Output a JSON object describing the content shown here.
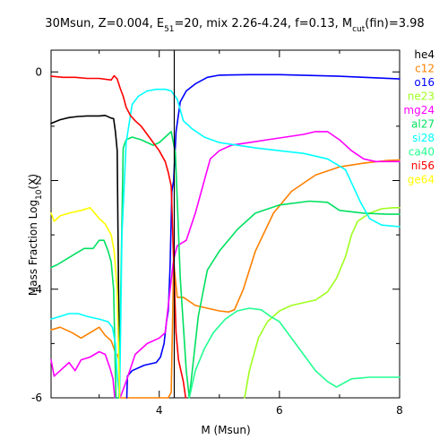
{
  "chart_data": {
    "type": "line",
    "title": {
      "base": "30Msun, Z=0.004, E",
      "base_sub": "51",
      "mid": "=20, mix 2.26-4.24, f=0.13, M",
      "mid_sub": "cut",
      "end": "(fin)=3.98"
    },
    "xlabel": "M (Msun)",
    "ylabel": {
      "base": "Mass Fraction Log",
      "sub": "10",
      "end": "(X)"
    },
    "xlim": [
      2.2,
      8
    ],
    "ylim": [
      -6,
      0.4
    ],
    "xticks": [
      4,
      6,
      8
    ],
    "xtick_labels": [
      "4",
      "6",
      "8"
    ],
    "yticks": [
      -6,
      -4,
      -2,
      0
    ],
    "ytick_labels": [
      "-6",
      "-4",
      "-2",
      "0"
    ],
    "vertical_line_x": 4.25,
    "grid": false,
    "legend_position": "right",
    "series": [
      {
        "name": "he4",
        "color": "#000000",
        "x": [
          2.2,
          2.35,
          2.5,
          2.65,
          2.8,
          3.0,
          3.1,
          3.2,
          3.24,
          3.27,
          3.3,
          3.34
        ],
        "y": [
          -0.95,
          -0.88,
          -0.84,
          -0.82,
          -0.81,
          -0.81,
          -0.8,
          -0.85,
          -0.86,
          -1.1,
          -1.45,
          -6
        ]
      },
      {
        "name": "c12",
        "color": "#ff8000",
        "x": [
          2.2,
          2.35,
          2.55,
          2.7,
          2.85,
          3.0,
          3.1,
          3.2,
          3.25,
          3.28,
          3.3,
          3.33,
          3.34,
          3.36,
          3.6,
          3.8,
          4.0,
          4.15,
          4.2,
          4.24,
          4.3,
          4.4,
          4.6,
          4.8,
          5.0,
          5.15,
          5.25,
          5.4,
          5.6,
          5.9,
          6.2,
          6.6,
          7.0,
          7.4,
          7.8,
          8.0
        ],
        "y": [
          -4.75,
          -4.7,
          -4.8,
          -4.9,
          -4.8,
          -4.7,
          -4.85,
          -4.95,
          -5.1,
          -5.2,
          -5.2,
          -5.3,
          -6,
          -6,
          -6,
          -6,
          -6,
          -6,
          -5.9,
          -3.5,
          -4.15,
          -4.15,
          -4.3,
          -4.35,
          -4.4,
          -4.42,
          -4.38,
          -4.0,
          -3.3,
          -2.6,
          -2.2,
          -1.9,
          -1.75,
          -1.68,
          -1.63,
          -1.62
        ]
      },
      {
        "name": "o16",
        "color": "#0000ff",
        "x": [
          3.46,
          3.47,
          3.55,
          3.75,
          3.95,
          4.02,
          4.08,
          4.12,
          4.15,
          4.18,
          4.21,
          4.24,
          4.28,
          4.35,
          4.45,
          4.6,
          4.8,
          5.0,
          5.5,
          6.0,
          7.0,
          8.0
        ],
        "y": [
          -6,
          -5.6,
          -5.5,
          -5.4,
          -5.35,
          -5.25,
          -5.0,
          -4.6,
          -4.4,
          -3.6,
          -2.2,
          -2.0,
          -1.1,
          -0.55,
          -0.35,
          -0.22,
          -0.1,
          -0.06,
          -0.05,
          -0.05,
          -0.08,
          -0.13
        ]
      },
      {
        "name": "ne23",
        "color": "#a0ff20",
        "x": [
          5.42,
          5.5,
          5.65,
          5.8,
          6.0,
          6.2,
          6.4,
          6.6,
          6.8,
          6.95,
          7.1,
          7.2,
          7.3,
          7.5,
          7.7,
          7.9,
          8.0
        ],
        "y": [
          -6,
          -5.5,
          -4.9,
          -4.6,
          -4.4,
          -4.3,
          -4.25,
          -4.2,
          -4.05,
          -3.8,
          -3.4,
          -3.0,
          -2.75,
          -2.6,
          -2.52,
          -2.5,
          -2.5
        ]
      },
      {
        "name": "mg24",
        "color": "#ff00ff",
        "x": [
          2.2,
          2.25,
          2.35,
          2.5,
          2.6,
          2.7,
          2.85,
          3.0,
          3.1,
          3.18,
          3.23,
          3.26,
          3.3,
          3.35,
          3.45,
          3.6,
          3.8,
          4.0,
          4.1,
          4.15,
          4.24,
          4.3,
          4.45,
          4.6,
          4.75,
          4.85,
          5.0,
          5.2,
          5.5,
          5.8,
          6.1,
          6.4,
          6.6,
          6.8,
          7.0,
          7.2,
          7.4,
          7.6,
          8.0
        ],
        "y": [
          -5.3,
          -5.6,
          -5.5,
          -5.35,
          -5.5,
          -5.3,
          -5.25,
          -5.15,
          -5.2,
          -5.45,
          -5.65,
          -6,
          -6,
          -6,
          -5.7,
          -5.2,
          -5.0,
          -4.9,
          -4.8,
          -4.3,
          -3.45,
          -3.2,
          -3.1,
          -2.6,
          -2.0,
          -1.6,
          -1.45,
          -1.35,
          -1.3,
          -1.25,
          -1.2,
          -1.15,
          -1.1,
          -1.1,
          -1.25,
          -1.45,
          -1.6,
          -1.65,
          -1.65
        ]
      },
      {
        "name": "al27",
        "color": "#00e060",
        "x": [
          2.2,
          2.3,
          2.45,
          2.6,
          2.75,
          2.9,
          3.0,
          3.08,
          3.15,
          3.2,
          3.24,
          3.28,
          3.33,
          3.36,
          3.4,
          3.45,
          3.55,
          3.7,
          3.9,
          4.0,
          4.1,
          4.2,
          4.27,
          4.35,
          4.45,
          4.5,
          4.55,
          4.65,
          4.8,
          5.0,
          5.3,
          5.6,
          6.0,
          6.5,
          6.8,
          7.0,
          7.4,
          7.8,
          8.0
        ],
        "y": [
          -3.6,
          -3.55,
          -3.45,
          -3.35,
          -3.25,
          -3.25,
          -3.1,
          -3.1,
          -3.3,
          -3.5,
          -4.0,
          -6,
          -6,
          -4.0,
          -1.4,
          -1.25,
          -1.2,
          -1.25,
          -1.35,
          -1.3,
          -1.2,
          -1.1,
          -1.5,
          -3.8,
          -5.5,
          -6,
          -5.5,
          -4.5,
          -3.65,
          -3.3,
          -2.9,
          -2.6,
          -2.45,
          -2.38,
          -2.4,
          -2.55,
          -2.6,
          -2.62,
          -2.62
        ]
      },
      {
        "name": "si28",
        "color": "#00ffff",
        "x": [
          2.2,
          2.35,
          2.5,
          2.65,
          2.8,
          3.0,
          3.15,
          3.22,
          3.27,
          3.3,
          3.34,
          3.38,
          3.45,
          3.55,
          3.65,
          3.8,
          3.95,
          4.1,
          4.2,
          4.3,
          4.4,
          4.55,
          4.75,
          5.0,
          5.3,
          5.6,
          6.0,
          6.4,
          6.8,
          7.1,
          7.35,
          7.5,
          7.7,
          8.0
        ],
        "y": [
          -4.55,
          -4.5,
          -4.45,
          -4.45,
          -4.5,
          -4.55,
          -4.6,
          -4.7,
          -5.0,
          -5.6,
          -6,
          -3.0,
          -1.3,
          -0.6,
          -0.45,
          -0.35,
          -0.32,
          -0.32,
          -0.35,
          -0.5,
          -0.9,
          -1.05,
          -1.2,
          -1.3,
          -1.35,
          -1.4,
          -1.45,
          -1.5,
          -1.6,
          -1.8,
          -2.4,
          -2.7,
          -2.82,
          -2.85
        ]
      },
      {
        "name": "ca40",
        "color": "#20ff90",
        "x": [
          4.5,
          4.6,
          4.75,
          4.9,
          5.1,
          5.3,
          5.5,
          5.7,
          5.85,
          6.0,
          6.2,
          6.4,
          6.6,
          6.8,
          6.95,
          7.2,
          7.5,
          7.8,
          8.0
        ],
        "y": [
          -6,
          -5.5,
          -5.1,
          -4.8,
          -4.55,
          -4.4,
          -4.35,
          -4.38,
          -4.5,
          -4.6,
          -4.9,
          -5.2,
          -5.5,
          -5.7,
          -5.8,
          -5.65,
          -5.62,
          -5.62,
          -5.62
        ]
      },
      {
        "name": "ni56",
        "color": "#ff0000",
        "x": [
          2.2,
          2.4,
          2.6,
          2.8,
          3.0,
          3.2,
          3.25,
          3.3,
          3.35,
          3.4,
          3.45,
          3.52,
          3.6,
          3.7,
          3.8,
          3.9,
          4.0,
          4.1,
          4.15,
          4.2,
          4.24,
          4.28,
          4.32,
          4.36,
          4.4,
          4.44
        ],
        "y": [
          -0.08,
          -0.1,
          -0.1,
          -0.12,
          -0.12,
          -0.15,
          -0.07,
          -0.13,
          -0.3,
          -0.45,
          -0.65,
          -0.8,
          -0.9,
          -1.0,
          -1.15,
          -1.3,
          -1.45,
          -1.65,
          -1.85,
          -2.1,
          -3.5,
          -4.8,
          -5.3,
          -5.5,
          -5.7,
          -6
        ]
      },
      {
        "name": "ge64",
        "color": "#ffff00",
        "x": [
          2.2,
          2.25,
          2.35,
          2.5,
          2.7,
          2.85,
          3.0,
          3.1,
          3.2,
          3.25,
          3.3,
          3.34
        ],
        "y": [
          -2.6,
          -2.75,
          -2.65,
          -2.6,
          -2.55,
          -2.5,
          -2.7,
          -2.8,
          -3.0,
          -3.3,
          -4.0,
          -6
        ]
      }
    ]
  }
}
